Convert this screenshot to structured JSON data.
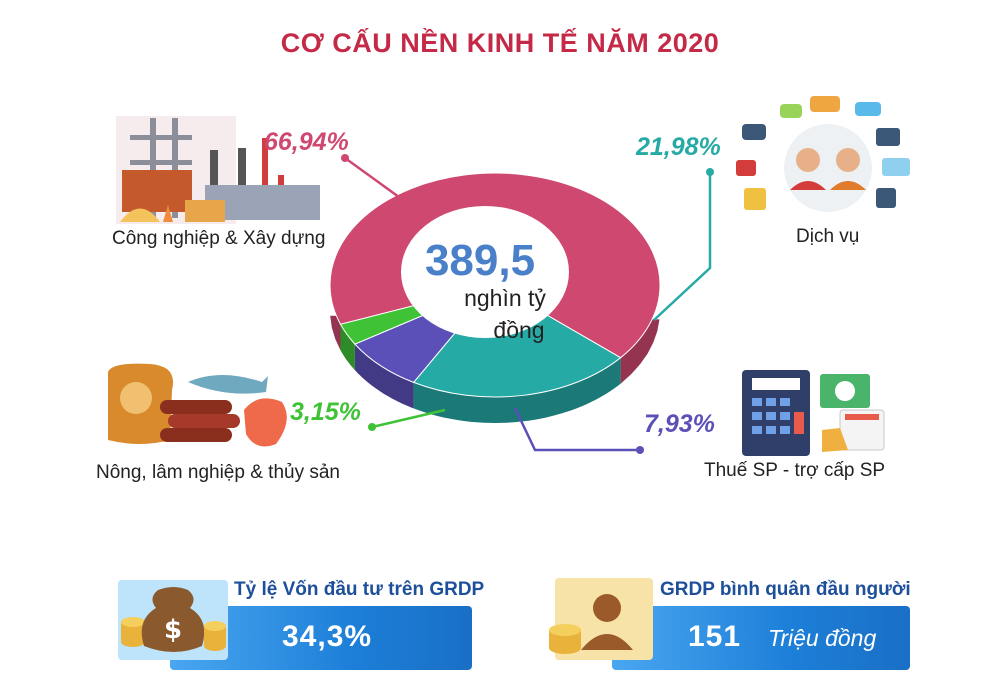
{
  "colors": {
    "industry": "#cf4870",
    "services": "#26aaa6",
    "agriculture": "#3fc236",
    "tax": "#5b50b8",
    "title": "#c42a47",
    "accent_blue": "#4a7fc9"
  },
  "chart_data": {
    "type": "pie",
    "style": "3d-donut",
    "title": "CƠ CẤU NỀN KINH TẾ NĂM 2020",
    "center_value": "389,5",
    "center_unit_line1": "nghìn tỷ",
    "center_unit_line2": "đồng",
    "slices": [
      {
        "label": "Công nghiệp & Xây dựng",
        "value": 66.94,
        "value_label": "66,94%",
        "color": "#cf4870",
        "icon": "factory-icon"
      },
      {
        "label": "Dịch vụ",
        "value": 21.98,
        "value_label": "21,98%",
        "color": "#26aaa6",
        "icon": "call-center-icon"
      },
      {
        "label": "Thuế SP - trợ cấp SP",
        "value": 7.93,
        "value_label": "7,93%",
        "color": "#5b50b8",
        "icon": "tax-calculator-icon"
      },
      {
        "label": "Nông, lâm nghiệp & thủy sản",
        "value": 3.15,
        "value_label": "3,15%",
        "color": "#3fc236",
        "icon": "agriculture-icon"
      }
    ]
  },
  "indicators": [
    {
      "label": "Tỷ lệ Vốn đầu tư trên GRDP",
      "value": "34,3%",
      "unit": "",
      "icon": "money-bag-icon"
    },
    {
      "label": "GRDP bình quân đầu người",
      "value": "151",
      "unit": "Triệu đồng",
      "icon": "person-coins-icon"
    }
  ]
}
